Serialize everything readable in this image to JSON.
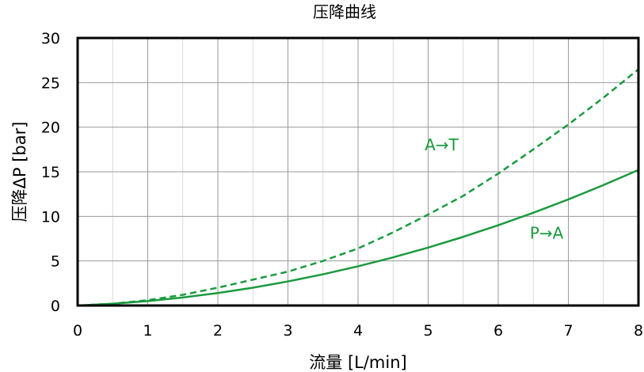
{
  "chart_data": {
    "type": "line",
    "title": "压降曲线",
    "xlabel": "流量 [L/min]",
    "ylabel": "压降ΔP [bar]",
    "xlim": [
      0,
      8
    ],
    "ylim": [
      0,
      30
    ],
    "xticks": [
      "0",
      "1",
      "2",
      "3",
      "4",
      "5",
      "6",
      "7",
      "8"
    ],
    "yticks": [
      "0",
      "5",
      "10",
      "15",
      "20",
      "25",
      "30"
    ],
    "grid": true,
    "line_color": "#1a9a3e",
    "series": [
      {
        "name": "P→A",
        "style": "solid",
        "x": [
          0,
          0.5,
          1,
          1.5,
          2,
          2.5,
          3,
          3.5,
          4,
          4.5,
          5,
          5.5,
          6,
          6.5,
          7,
          7.5,
          8
        ],
        "y": [
          0,
          0.2,
          0.5,
          0.9,
          1.4,
          2.0,
          2.7,
          3.5,
          4.4,
          5.4,
          6.5,
          7.7,
          9.0,
          10.4,
          11.9,
          13.5,
          15.2
        ]
      },
      {
        "name": "A→T",
        "style": "dashed",
        "x": [
          0,
          0.5,
          1,
          1.5,
          2,
          2.5,
          3,
          3.5,
          4,
          4.5,
          5,
          5.5,
          6,
          6.5,
          7,
          7.5,
          8
        ],
        "y": [
          0,
          0.2,
          0.6,
          1.2,
          2.0,
          2.9,
          3.8,
          5.0,
          6.4,
          8.2,
          10.2,
          12.3,
          14.8,
          17.5,
          20.3,
          23.3,
          26.5
        ]
      }
    ],
    "annotations": [
      {
        "text": "A→T",
        "x": 4.95,
        "y": 17.4
      },
      {
        "text": "P→A",
        "x": 6.45,
        "y": 7.5
      }
    ]
  }
}
